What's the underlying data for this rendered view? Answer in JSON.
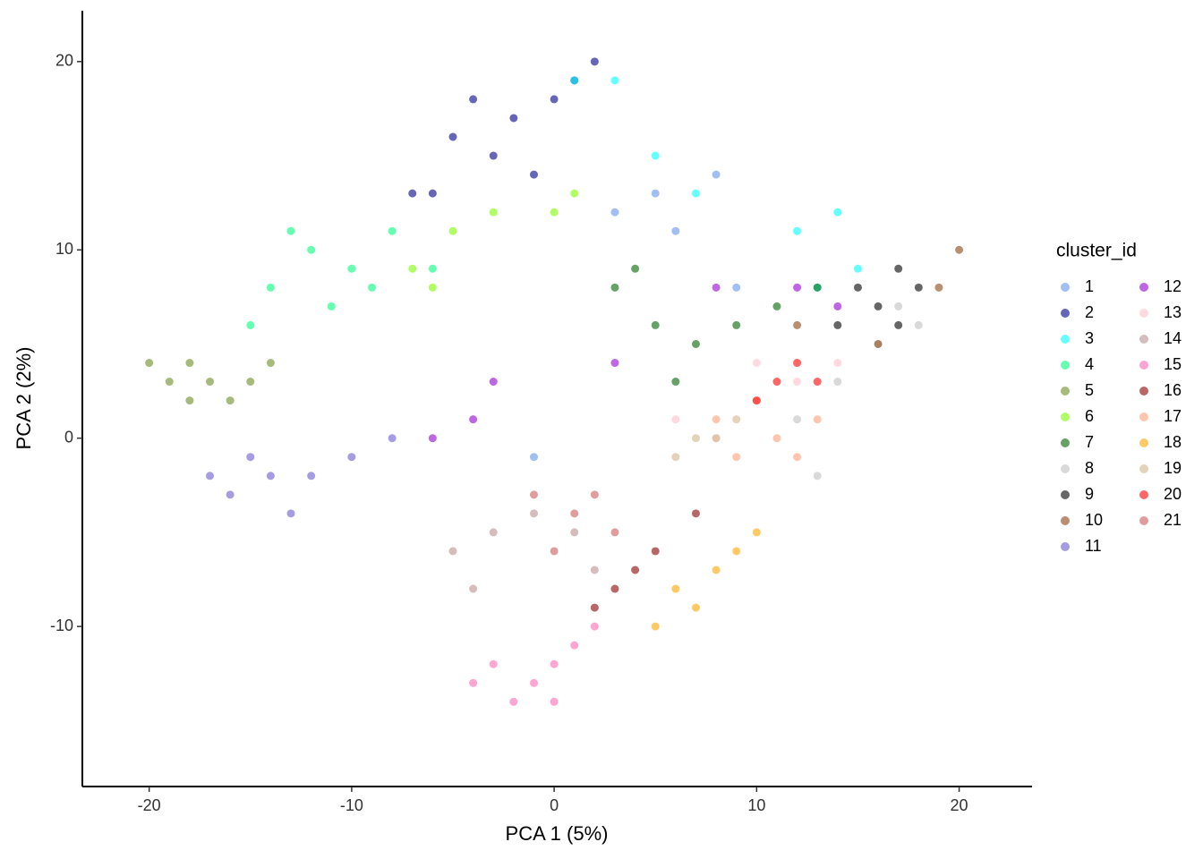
{
  "chart_data": {
    "type": "scatter",
    "x_label": "PCA 1 (5%)",
    "y_label": "PCA 2 (2%)",
    "xlim": [
      -23.3,
      23.6
    ],
    "ylim": [
      -18.5,
      22.7
    ],
    "xticks": [
      -20,
      -10,
      0,
      10,
      20
    ],
    "yticks": [
      -10,
      0,
      10,
      20
    ],
    "legend_title": "cluster_id",
    "legend_position": "right",
    "series": [
      {
        "name": "1",
        "color": "#6495ED",
        "x": [
          -1,
          5,
          8,
          3,
          6,
          9
        ],
        "y": [
          -1,
          13,
          14,
          12,
          11,
          8
        ]
      },
      {
        "name": "2",
        "color": "#00008B",
        "x": [
          -4,
          -2,
          0,
          2,
          -6,
          -3,
          1,
          -5,
          -1,
          -7
        ],
        "y": [
          18,
          17,
          18,
          20,
          13,
          15,
          19,
          16,
          14,
          13
        ]
      },
      {
        "name": "3",
        "color": "#00FFFF",
        "x": [
          1,
          3,
          5,
          7,
          12,
          14,
          15,
          13
        ],
        "y": [
          19,
          19,
          15,
          13,
          11,
          12,
          9,
          8
        ]
      },
      {
        "name": "4",
        "color": "#00FF7F",
        "x": [
          -12,
          -10,
          -14,
          -8,
          -6,
          -11,
          -13,
          -9,
          -15
        ],
        "y": [
          10,
          9,
          8,
          11,
          9,
          7,
          11,
          8,
          6
        ]
      },
      {
        "name": "5",
        "color": "#6B8E23",
        "x": [
          -19,
          -17,
          -15,
          -18,
          -16,
          -20,
          -14,
          -18
        ],
        "y": [
          3,
          3,
          3,
          4,
          2,
          4,
          4,
          2
        ]
      },
      {
        "name": "6",
        "color": "#7CFC00",
        "x": [
          -7,
          -5,
          -3,
          0,
          -6,
          1
        ],
        "y": [
          9,
          11,
          12,
          12,
          8,
          13
        ]
      },
      {
        "name": "7",
        "color": "#006400",
        "x": [
          3,
          5,
          7,
          9,
          11,
          13,
          6,
          4
        ],
        "y": [
          8,
          6,
          5,
          6,
          7,
          8,
          3,
          9
        ]
      },
      {
        "name": "8",
        "color": "#C0C0C0",
        "x": [
          16,
          17,
          14,
          12,
          13,
          18
        ],
        "y": [
          5,
          7,
          3,
          1,
          -2,
          6
        ]
      },
      {
        "name": "9",
        "color": "#000000",
        "x": [
          15,
          16,
          17,
          18,
          14,
          17
        ],
        "y": [
          8,
          7,
          6,
          8,
          6,
          9
        ]
      },
      {
        "name": "10",
        "color": "#8B4513",
        "x": [
          12,
          16,
          19,
          20
        ],
        "y": [
          6,
          5,
          8,
          10
        ]
      },
      {
        "name": "11",
        "color": "#6A5ACD",
        "x": [
          -14,
          -12,
          -16,
          -10,
          -13,
          -15,
          -17,
          -8
        ],
        "y": [
          -2,
          -2,
          -3,
          -1,
          -4,
          -1,
          -2,
          0
        ]
      },
      {
        "name": "12",
        "color": "#9400D3",
        "x": [
          -6,
          -4,
          3,
          8,
          12,
          14,
          -3
        ],
        "y": [
          0,
          1,
          4,
          8,
          8,
          7,
          3
        ]
      },
      {
        "name": "13",
        "color": "#FFC0CB",
        "x": [
          10,
          12,
          8,
          14,
          6
        ],
        "y": [
          4,
          3,
          0,
          4,
          1
        ]
      },
      {
        "name": "14",
        "color": "#BC8F8F",
        "x": [
          -5,
          -3,
          -1,
          1,
          2,
          -4
        ],
        "y": [
          -6,
          -5,
          -4,
          -5,
          -7,
          -8
        ]
      },
      {
        "name": "15",
        "color": "#FF69B4",
        "x": [
          -1,
          0,
          -2,
          1,
          -3,
          0,
          2,
          -4
        ],
        "y": [
          -13,
          -12,
          -14,
          -11,
          -12,
          -14,
          -10,
          -13
        ]
      },
      {
        "name": "16",
        "color": "#8B0000",
        "x": [
          4,
          3,
          5,
          2,
          7
        ],
        "y": [
          -7,
          -8,
          -6,
          -9,
          -4
        ]
      },
      {
        "name": "17",
        "color": "#FFA07A",
        "x": [
          9,
          11,
          10,
          12,
          8,
          13
        ],
        "y": [
          -1,
          0,
          2,
          -1,
          1,
          1
        ]
      },
      {
        "name": "18",
        "color": "#FFA500",
        "x": [
          6,
          8,
          9,
          7,
          10,
          5
        ],
        "y": [
          -8,
          -7,
          -6,
          -9,
          -5,
          -10
        ]
      },
      {
        "name": "19",
        "color": "#D2B48C",
        "x": [
          7,
          9,
          6,
          8
        ],
        "y": [
          0,
          1,
          -1,
          0
        ]
      },
      {
        "name": "20",
        "color": "#FF0000",
        "x": [
          11,
          12,
          10,
          13
        ],
        "y": [
          3,
          4,
          2,
          3
        ]
      },
      {
        "name": "21",
        "color": "#CD5C5C",
        "x": [
          -1,
          1,
          3,
          0,
          2
        ],
        "y": [
          -3,
          -4,
          -5,
          -6,
          -3
        ]
      }
    ]
  }
}
